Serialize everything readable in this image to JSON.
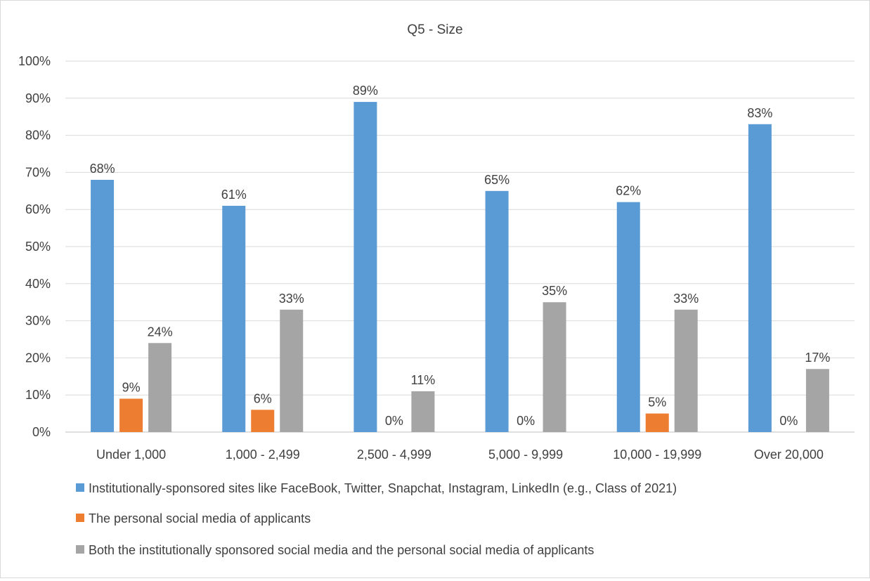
{
  "chart_data": {
    "type": "bar",
    "title": "Q5 - Size",
    "categories": [
      "Under 1,000",
      "1,000 - 2,499",
      "2,500 - 4,999",
      "5,000 - 9,999",
      "10,000 - 19,999",
      "Over 20,000"
    ],
    "series": [
      {
        "name": "Institutionally-sponsored sites like FaceBook, Twitter,  Snapchat, Instagram, LinkedIn (e.g., Class of 2021)",
        "color": "#5b9bd5",
        "values": [
          68,
          61,
          89,
          65,
          62,
          83
        ]
      },
      {
        "name": "The personal social media of applicants",
        "color": "#ed7d31",
        "values": [
          9,
          6,
          0,
          0,
          5,
          0
        ]
      },
      {
        "name": "Both the institutionally sponsored social media and the personal social media of applicants",
        "color": "#a5a5a5",
        "values": [
          24,
          33,
          11,
          35,
          33,
          17
        ]
      }
    ],
    "ylim": [
      0,
      100
    ],
    "yticks": [
      "0%",
      "10%",
      "20%",
      "30%",
      "40%",
      "50%",
      "60%",
      "70%",
      "80%",
      "90%",
      "100%"
    ],
    "value_suffix": "%",
    "grid": true,
    "legend_position": "bottom"
  }
}
